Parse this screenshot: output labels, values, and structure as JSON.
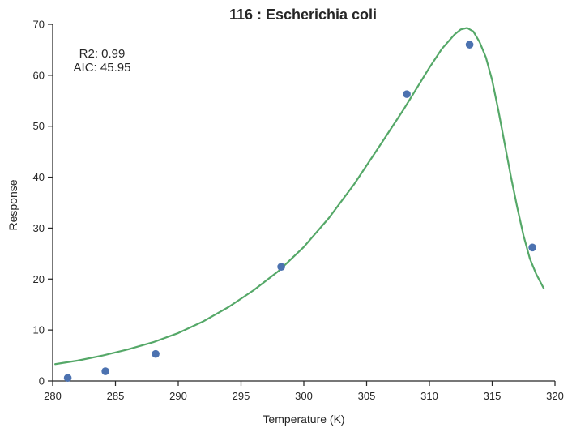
{
  "chart_data": {
    "type": "scatter",
    "title": "116 : Escherichia coli",
    "xlabel": "Temperature (K)",
    "ylabel": "Response",
    "xlim": [
      280,
      320
    ],
    "ylim": [
      0,
      70
    ],
    "xticks": [
      280,
      285,
      290,
      295,
      300,
      305,
      310,
      315,
      320
    ],
    "yticks": [
      0,
      10,
      20,
      30,
      40,
      50,
      60,
      70
    ],
    "grid": false,
    "annotations": [
      "R2: 0.99",
      "AIC: 45.95"
    ],
    "series": [
      {
        "type": "scatter",
        "color": "#4c72b0",
        "x": [
          281.2,
          284.2,
          288.2,
          298.2,
          308.2,
          313.2,
          318.2
        ],
        "y": [
          0.6,
          1.9,
          5.3,
          22.4,
          56.3,
          66.0,
          26.2
        ]
      },
      {
        "type": "line",
        "color": "#55a868",
        "x": [
          280.2,
          282,
          284,
          286,
          288,
          290,
          292,
          294,
          296,
          298,
          300,
          302,
          304,
          306,
          308,
          309,
          310,
          311,
          312,
          312.5,
          313,
          313.5,
          314,
          314.5,
          315,
          315.5,
          316,
          316.5,
          317,
          317.5,
          318,
          318.5,
          319.1
        ],
        "y": [
          3.3,
          4.0,
          5.0,
          6.2,
          7.6,
          9.4,
          11.7,
          14.5,
          17.8,
          21.6,
          26.3,
          32.0,
          38.6,
          46.0,
          53.5,
          57.5,
          61.5,
          65.2,
          68.0,
          69.0,
          69.3,
          68.6,
          66.5,
          63.5,
          59.0,
          53.0,
          46.5,
          40.0,
          34.0,
          28.5,
          24.0,
          21.0,
          18.2
        ]
      }
    ]
  }
}
